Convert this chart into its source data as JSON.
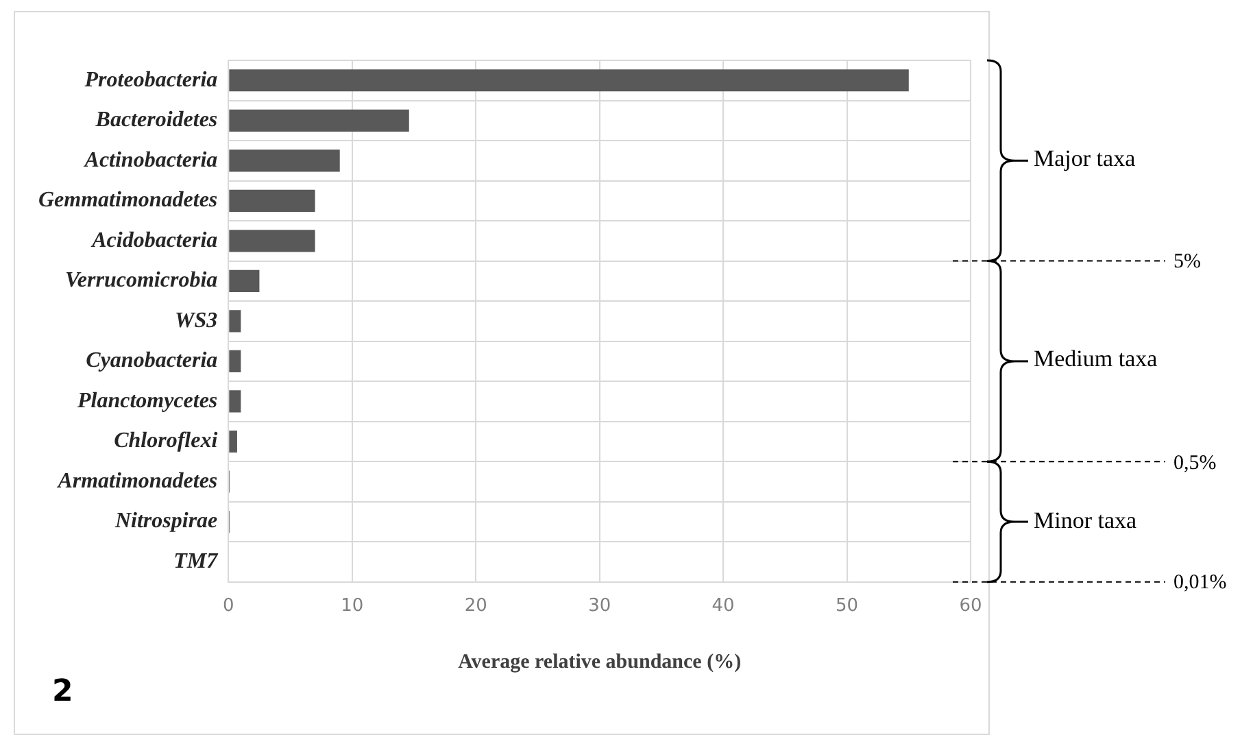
{
  "chart_data": {
    "type": "bar",
    "orientation": "horizontal",
    "categories": [
      "Proteobacteria",
      "Bacteroidetes",
      "Actinobacteria",
      "Gemmatimonadetes",
      "Acidobacteria",
      "Verrucomicrobia",
      "WS3",
      "Cyanobacteria",
      "Planctomycetes",
      "Chloroflexi",
      "Armatimonadetes",
      "Nitrospirae",
      "TM7"
    ],
    "values": [
      55,
      14.6,
      9,
      7,
      7,
      2.5,
      1,
      1,
      1,
      0.7,
      0.1,
      0.1,
      0
    ],
    "color": "#595959",
    "xlabel": "Average relative abundance (%)",
    "xlim": [
      0,
      60
    ],
    "xticks": [
      0,
      10,
      20,
      30,
      40,
      50,
      60
    ],
    "grid": true,
    "annotations": [
      "Major taxa",
      "5%",
      "Medium taxa",
      "0,5%",
      "Minor taxa",
      "0,01%",
      "2"
    ]
  }
}
